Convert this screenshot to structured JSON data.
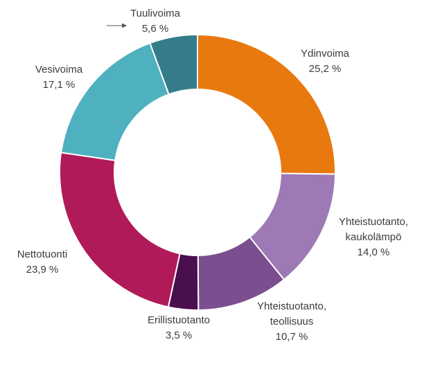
{
  "chart_data": {
    "type": "pie",
    "donut": true,
    "slices": [
      {
        "name": "Ydinvoima",
        "value": 25.2,
        "label": "25,2 %",
        "color": "#E8790F"
      },
      {
        "name": "Yhteistuotanto, kaukolämpö",
        "name_lines": [
          "Yhteistuotanto,",
          "kaukolämpö"
        ],
        "value": 14.0,
        "label": "14,0 %",
        "color": "#9D79B5"
      },
      {
        "name": "Yhteistuotanto, teollisuus",
        "name_lines": [
          "Yhteistuotanto,",
          "teollisuus"
        ],
        "value": 10.7,
        "label": "10,7 %",
        "color": "#7B4E8F"
      },
      {
        "name": "Erillistuotanto",
        "value": 3.5,
        "label": "3,5 %",
        "color": "#4A0F4E"
      },
      {
        "name": "Nettotuonti",
        "value": 23.9,
        "label": "23,9 %",
        "color": "#B01A58"
      },
      {
        "name": "Vesivoima",
        "value": 17.1,
        "label": "17,1 %",
        "color": "#4FB0C0"
      },
      {
        "name": "Tuulivoima",
        "value": 5.6,
        "label": "5,6 %",
        "color": "#357C8B"
      }
    ]
  }
}
